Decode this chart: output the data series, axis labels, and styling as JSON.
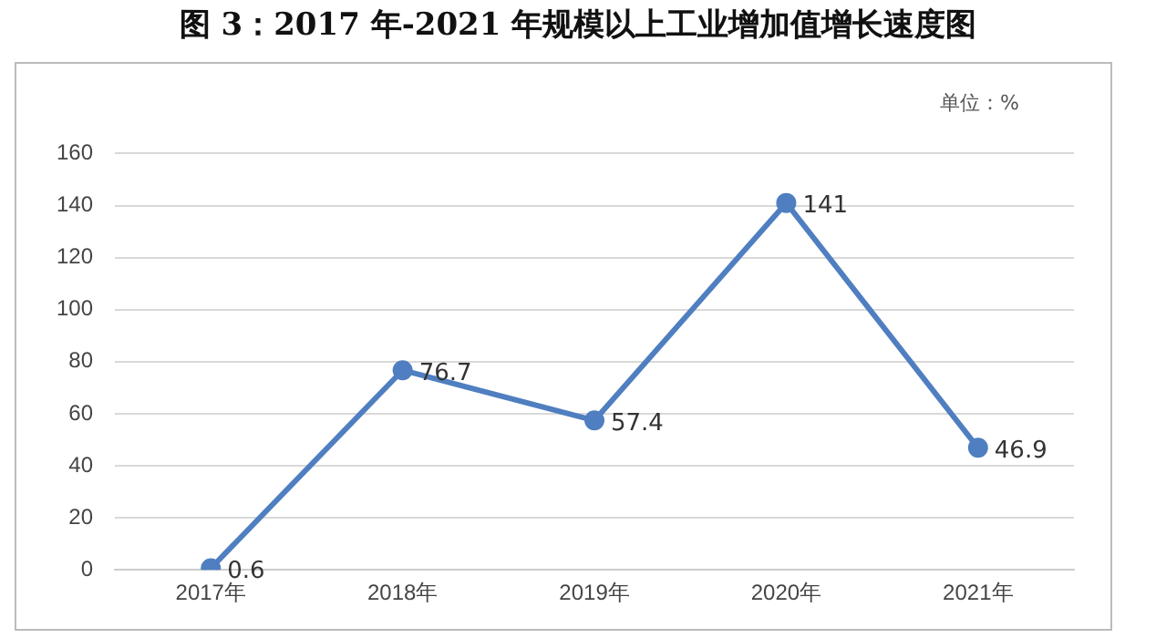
{
  "chart_data": {
    "type": "line",
    "title": "图 3：2017 年-2021 年规模以上工业增加值增长速度图",
    "annotations": [
      "单位：%"
    ],
    "categories": [
      "2017年",
      "2018年",
      "2019年",
      "2020年",
      "2021年"
    ],
    "series": [
      {
        "color": "#4f7fc0",
        "values": [
          0.6,
          76.7,
          57.4,
          141,
          46.9
        ]
      }
    ],
    "ylim": [
      0,
      160
    ],
    "yticks": [
      0,
      20,
      40,
      60,
      80,
      100,
      120,
      140,
      160
    ],
    "grid": "y",
    "legend": false,
    "marker": "circle",
    "line_style": "solid",
    "data_labels": true
  }
}
